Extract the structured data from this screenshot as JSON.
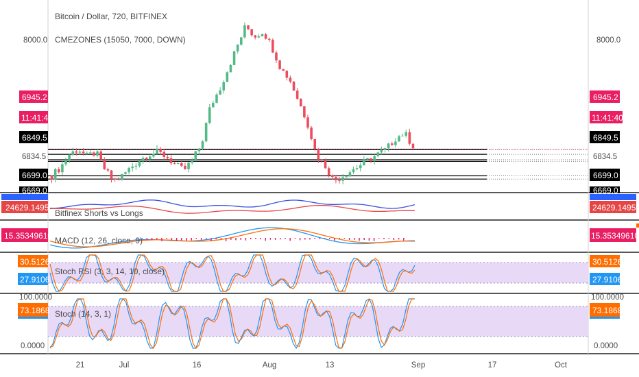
{
  "header": {
    "title": "Bitcoin / Dollar, 720, BITFINEX",
    "indicator": "CMEZONES (15050, 7000, DOWN)"
  },
  "panes": {
    "shorts_longs": "Bitfinex Shorts vs Longs",
    "macd": "MACD (12, 26, close, 9)",
    "stoch_rsi": "Stoch RSI (3, 3, 14, 10, close)",
    "stoch": "Stoch (14, 3, 1)"
  },
  "price_axis": {
    "level_8000": "8000.0",
    "tag_price": "6945.2",
    "tag_time": "11:41:40",
    "tag_6849": "6849.5",
    "tag_6834": "6834.5",
    "tag_6699": "6699.0",
    "tag_6669": "6669.0"
  },
  "shorts_axis": {
    "tag_top": "24629.1495"
  },
  "macd_axis": {
    "tag": "15.35349610"
  },
  "stochrsi_axis": {
    "tag_orange": "30.5126",
    "tag_blue": "27.9106"
  },
  "stoch_axis": {
    "tag_top": "100.0000",
    "tag_value": "73.1868",
    "tag_bottom": "0.0000"
  },
  "time_axis": [
    "21",
    "Jul",
    "16",
    "Aug",
    "13",
    "Sep",
    "17",
    "Oct"
  ],
  "colors": {
    "up": "#53b987",
    "down": "#eb4d5c",
    "blue": "#3b4fe0",
    "red": "#e64545",
    "macd": "#2196f3",
    "signal": "#ff6d00",
    "hist": "#e91e63",
    "band": "#d9c6f2",
    "pink_tag": "#e91e63",
    "orange_tag": "#ff6d00",
    "blue_tag": "#2196f3"
  },
  "chart_data": {
    "type": "line",
    "title": "Bitcoin / Dollar, 720, BITFINEX",
    "ylabel": "",
    "ylim": [
      6600,
      8200
    ],
    "x_ticks": [
      "21",
      "Jul",
      "16",
      "Aug",
      "13",
      "Sep",
      "17",
      "Oct"
    ],
    "horizontal_levels": [
      6945.2,
      6900,
      6849.5,
      6834.5,
      6699.0,
      6669.0
    ],
    "series": [
      {
        "values": [
          6700,
          6780,
          6900,
          6950,
          6880,
          6920,
          6760,
          6650,
          6700,
          6780,
          6850,
          6900,
          6920,
          6880,
          6800,
          6750,
          6850,
          7000,
          7350,
          7500,
          7700,
          7900,
          8100,
          8000,
          8050,
          7900,
          7700,
          7600,
          7400,
          7200,
          6900,
          6800,
          6650,
          6700,
          6750,
          6800,
          6850,
          6900,
          6950,
          7050,
          7100,
          6980
        ]
      }
    ]
  }
}
